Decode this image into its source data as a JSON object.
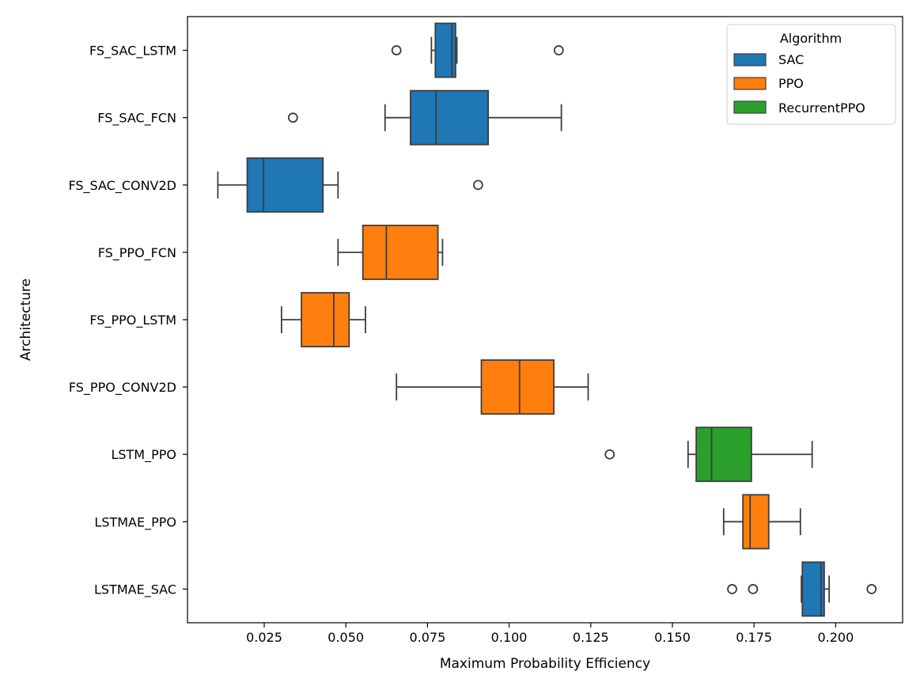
{
  "chart_data": {
    "type": "boxplot",
    "orientation": "horizontal",
    "title": "",
    "xlabel": "Maximum Probability Efficiency",
    "ylabel": "Architecture",
    "xlim": [
      0.0015,
      0.2205
    ],
    "xticks": [
      0.025,
      0.05,
      0.075,
      0.1,
      0.125,
      0.15,
      0.175,
      0.2
    ],
    "xtick_labels": [
      "0.025",
      "0.050",
      "0.075",
      "0.100",
      "0.125",
      "0.150",
      "0.175",
      "0.200"
    ],
    "grid": false,
    "legend": {
      "title": "Algorithm",
      "placement": "top-right",
      "entries": [
        {
          "name": "SAC",
          "color": "#1f77b4"
        },
        {
          "name": "PPO",
          "color": "#ff7f0e"
        },
        {
          "name": "RecurrentPPO",
          "color": "#2ca02c"
        }
      ]
    },
    "box_edge_color": "#3d3d3d",
    "categories": [
      "FS_SAC_LSTM",
      "FS_SAC_FCN",
      "FS_SAC_CONV2D",
      "FS_PPO_FCN",
      "FS_PPO_LSTM",
      "FS_PPO_CONV2D",
      "LSTM_PPO",
      "LSTMAE_PPO",
      "LSTMAE_SAC"
    ],
    "boxes": [
      {
        "category": "FS_SAC_LSTM",
        "algorithm": "SAC",
        "whislo": 0.0762,
        "q1": 0.0774,
        "median": 0.0825,
        "q3": 0.0836,
        "whishi": 0.084,
        "fliers": [
          0.0655,
          0.1152
        ]
      },
      {
        "category": "FS_SAC_FCN",
        "algorithm": "SAC",
        "whislo": 0.062,
        "q1": 0.0698,
        "median": 0.0776,
        "q3": 0.0936,
        "whishi": 0.116,
        "fliers": [
          0.0338
        ]
      },
      {
        "category": "FS_SAC_CONV2D",
        "algorithm": "SAC",
        "whislo": 0.0108,
        "q1": 0.0198,
        "median": 0.0248,
        "q3": 0.043,
        "whishi": 0.0476,
        "fliers": [
          0.0905
        ]
      },
      {
        "category": "FS_PPO_FCN",
        "algorithm": "PPO",
        "whislo": 0.0476,
        "q1": 0.0552,
        "median": 0.0624,
        "q3": 0.0782,
        "whishi": 0.0796,
        "fliers": []
      },
      {
        "category": "FS_PPO_LSTM",
        "algorithm": "PPO",
        "whislo": 0.0303,
        "q1": 0.0364,
        "median": 0.0463,
        "q3": 0.051,
        "whishi": 0.056,
        "fliers": []
      },
      {
        "category": "FS_PPO_CONV2D",
        "algorithm": "PPO",
        "whislo": 0.0655,
        "q1": 0.0915,
        "median": 0.1032,
        "q3": 0.1137,
        "whishi": 0.1242,
        "fliers": []
      },
      {
        "category": "LSTM_PPO",
        "algorithm": "RecurrentPPO",
        "whislo": 0.1548,
        "q1": 0.1573,
        "median": 0.162,
        "q3": 0.1742,
        "whishi": 0.1928,
        "fliers": [
          0.1308
        ]
      },
      {
        "category": "LSTMAE_PPO",
        "algorithm": "PPO",
        "whislo": 0.1657,
        "q1": 0.1716,
        "median": 0.1738,
        "q3": 0.1795,
        "whishi": 0.1892,
        "fliers": []
      },
      {
        "category": "LSTMAE_SAC",
        "algorithm": "SAC",
        "whislo": 0.1895,
        "q1": 0.1898,
        "median": 0.1955,
        "q3": 0.1965,
        "whishi": 0.198,
        "fliers": [
          0.1683,
          0.1747,
          0.211
        ]
      }
    ]
  }
}
